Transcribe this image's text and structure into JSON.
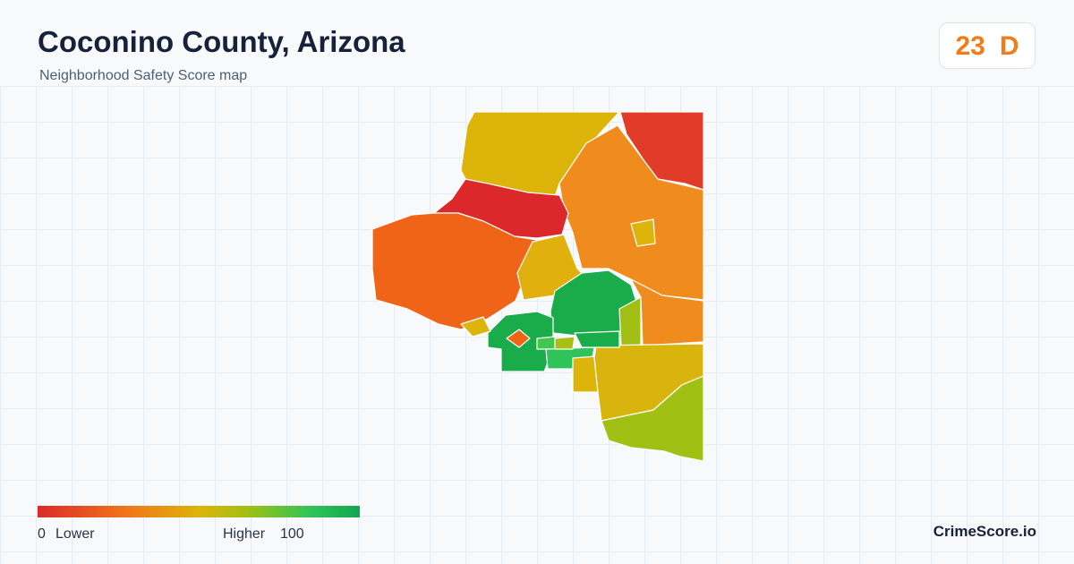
{
  "header": {
    "title": "Coconino County, Arizona",
    "subtitle": "Neighborhood Safety Score map"
  },
  "score": {
    "value": 23,
    "grade": "D"
  },
  "legend": {
    "min": 0,
    "min_label": "Lower",
    "max_label": "Higher",
    "max": 100
  },
  "brand": "CrimeScore.io"
}
